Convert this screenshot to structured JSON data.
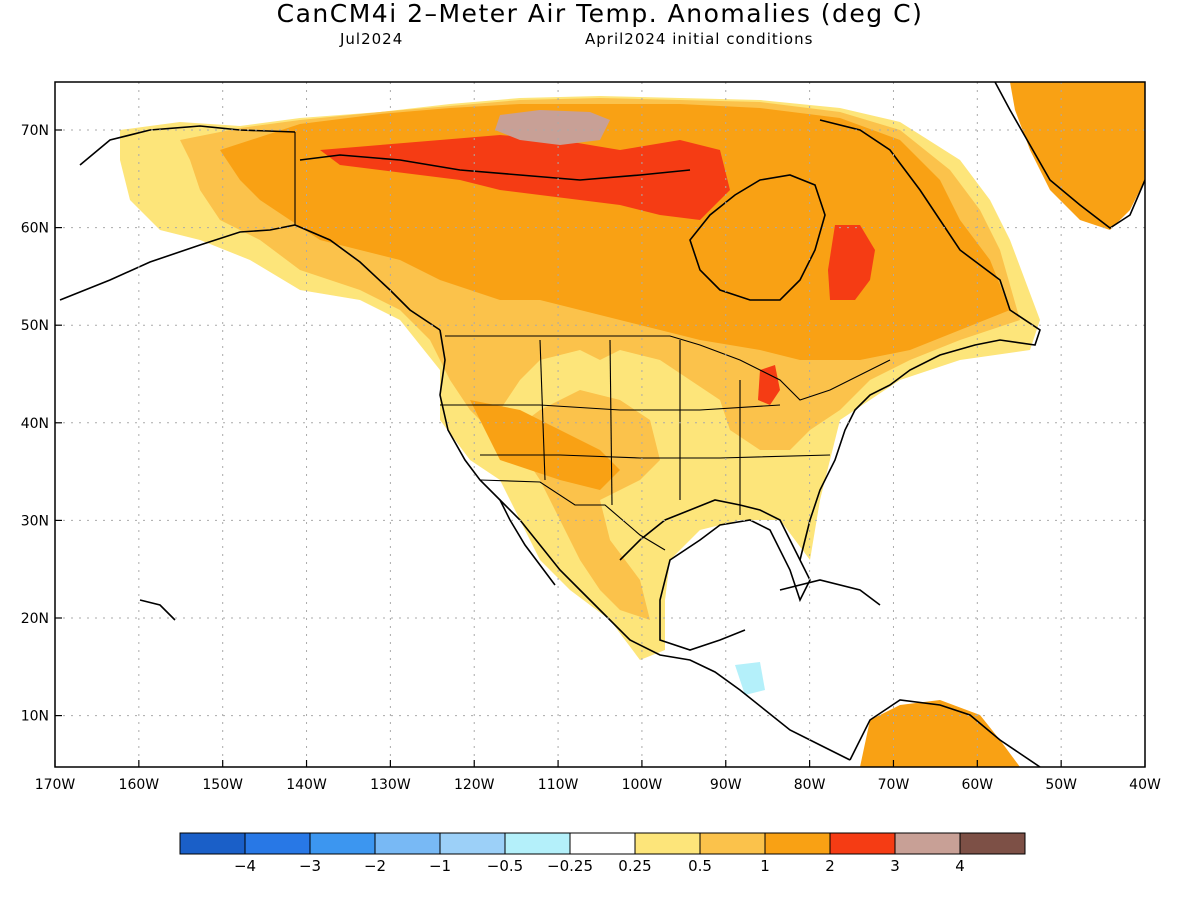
{
  "title": "CanCM4i 2–Meter Air Temp. Anomalies (deg C)",
  "subtitle_left": "Jul2024",
  "subtitle_right": "April2024 initial conditions",
  "lat_labels": [
    "70N",
    "60N",
    "50N",
    "40N",
    "30N",
    "20N",
    "10N"
  ],
  "lon_labels": [
    "170W",
    "160W",
    "150W",
    "140W",
    "130W",
    "120W",
    "110W",
    "100W",
    "90W",
    "80W",
    "70W",
    "60W",
    "50W",
    "40W"
  ],
  "colorbar": {
    "colors": [
      "#1a5fc8",
      "#2878e6",
      "#3c96f0",
      "#78b9f5",
      "#9cd0f8",
      "#b4f0fa",
      "#ffffff",
      "#fde57a",
      "#fbc24b",
      "#f9a114",
      "#f53c14",
      "#c8a096",
      "#7d5046"
    ],
    "labels": [
      "−4",
      "−3",
      "−2",
      "−1",
      "−0.5",
      "−0.25",
      "0.25",
      "0.5",
      "1",
      "2",
      "3",
      "4"
    ]
  },
  "colors": {
    "coast": "#000000",
    "grid": "#aaaaaa"
  }
}
